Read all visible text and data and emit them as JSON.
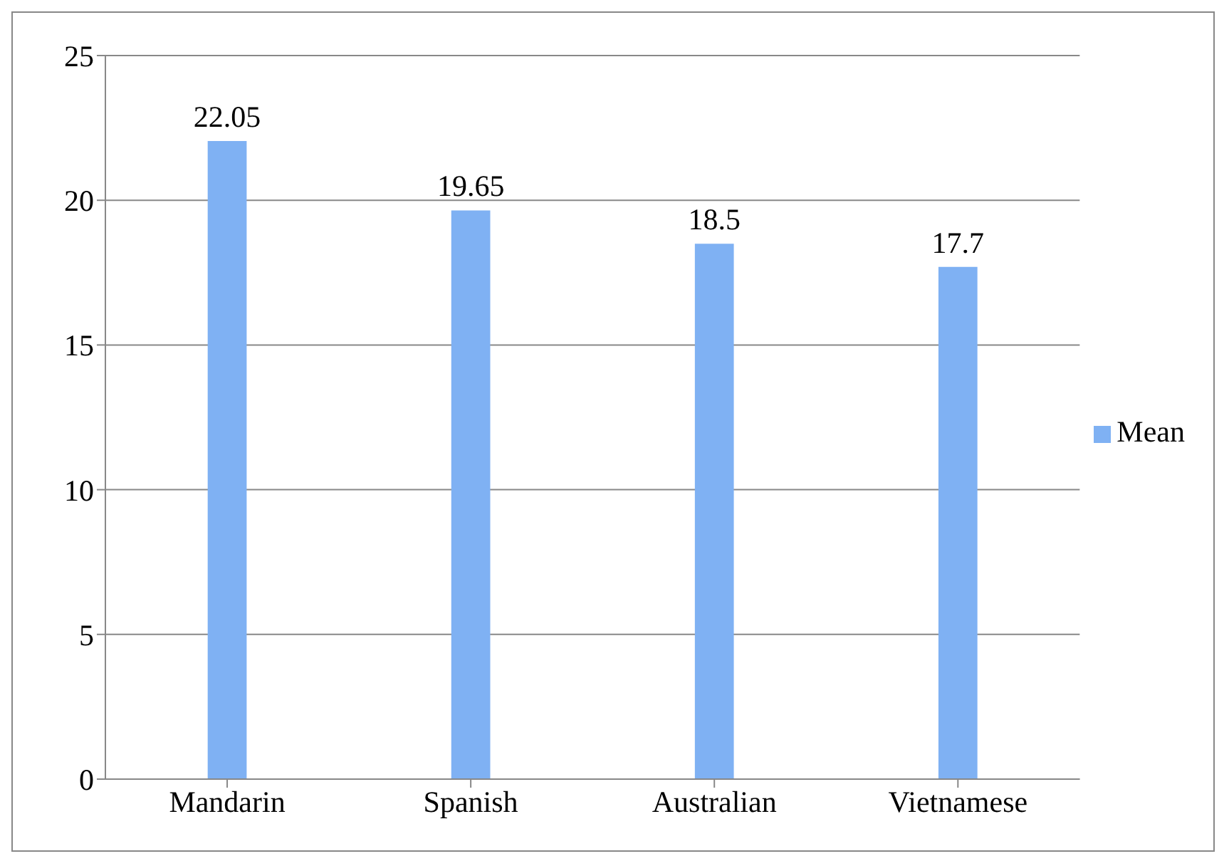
{
  "chart_data": {
    "type": "bar",
    "categories": [
      "Mandarin",
      "Spanish",
      "Australian",
      "Vietnamese"
    ],
    "series": [
      {
        "name": "Mean",
        "color": "#7fb1f3",
        "values": [
          22.05,
          19.65,
          18.5,
          17.7
        ]
      }
    ],
    "ylim": [
      0,
      25
    ],
    "yticks": [
      0,
      5,
      10,
      15,
      20,
      25
    ],
    "grid": "y",
    "legend": "right",
    "data_labels": true
  }
}
